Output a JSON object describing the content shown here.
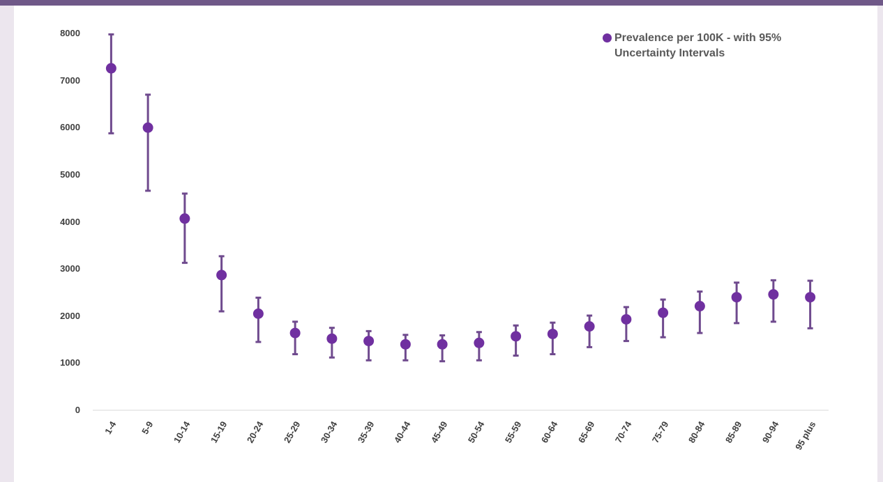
{
  "chart_data": {
    "type": "scatter",
    "title": "",
    "xlabel": "",
    "ylabel": "",
    "ylim": [
      0,
      8000
    ],
    "yticks": [
      "0",
      "1000",
      "2000",
      "3000",
      "4000",
      "5000",
      "6000",
      "7000",
      "8000"
    ],
    "categories": [
      "1-4",
      "5-9",
      "10-14",
      "15-19",
      "20-24",
      "25-29",
      "30-34",
      "35-39",
      "40-44",
      "45-49",
      "50-54",
      "55-59",
      "60-64",
      "65-69",
      "70-74",
      "75-79",
      "80-84",
      "85-89",
      "90-94",
      "95 plus"
    ],
    "series": [
      {
        "name": "Prevalence per 100K - with 95% Uncertainty Intervals",
        "color": "#7030a0",
        "errorbar_color": "#6f4a8e",
        "values": [
          7260,
          6000,
          4070,
          2870,
          2050,
          1640,
          1520,
          1470,
          1400,
          1400,
          1430,
          1570,
          1620,
          1780,
          1930,
          2070,
          2210,
          2400,
          2460,
          2400
        ],
        "lower": [
          5880,
          4660,
          3130,
          2100,
          1450,
          1190,
          1120,
          1060,
          1060,
          1040,
          1060,
          1160,
          1190,
          1340,
          1470,
          1550,
          1640,
          1850,
          1880,
          1740
        ],
        "upper": [
          7980,
          6700,
          4600,
          3270,
          2390,
          1880,
          1750,
          1680,
          1600,
          1590,
          1660,
          1800,
          1860,
          2010,
          2190,
          2350,
          2520,
          2710,
          2760,
          2750
        ]
      }
    ],
    "legend_position": "top-right",
    "grid": false
  }
}
